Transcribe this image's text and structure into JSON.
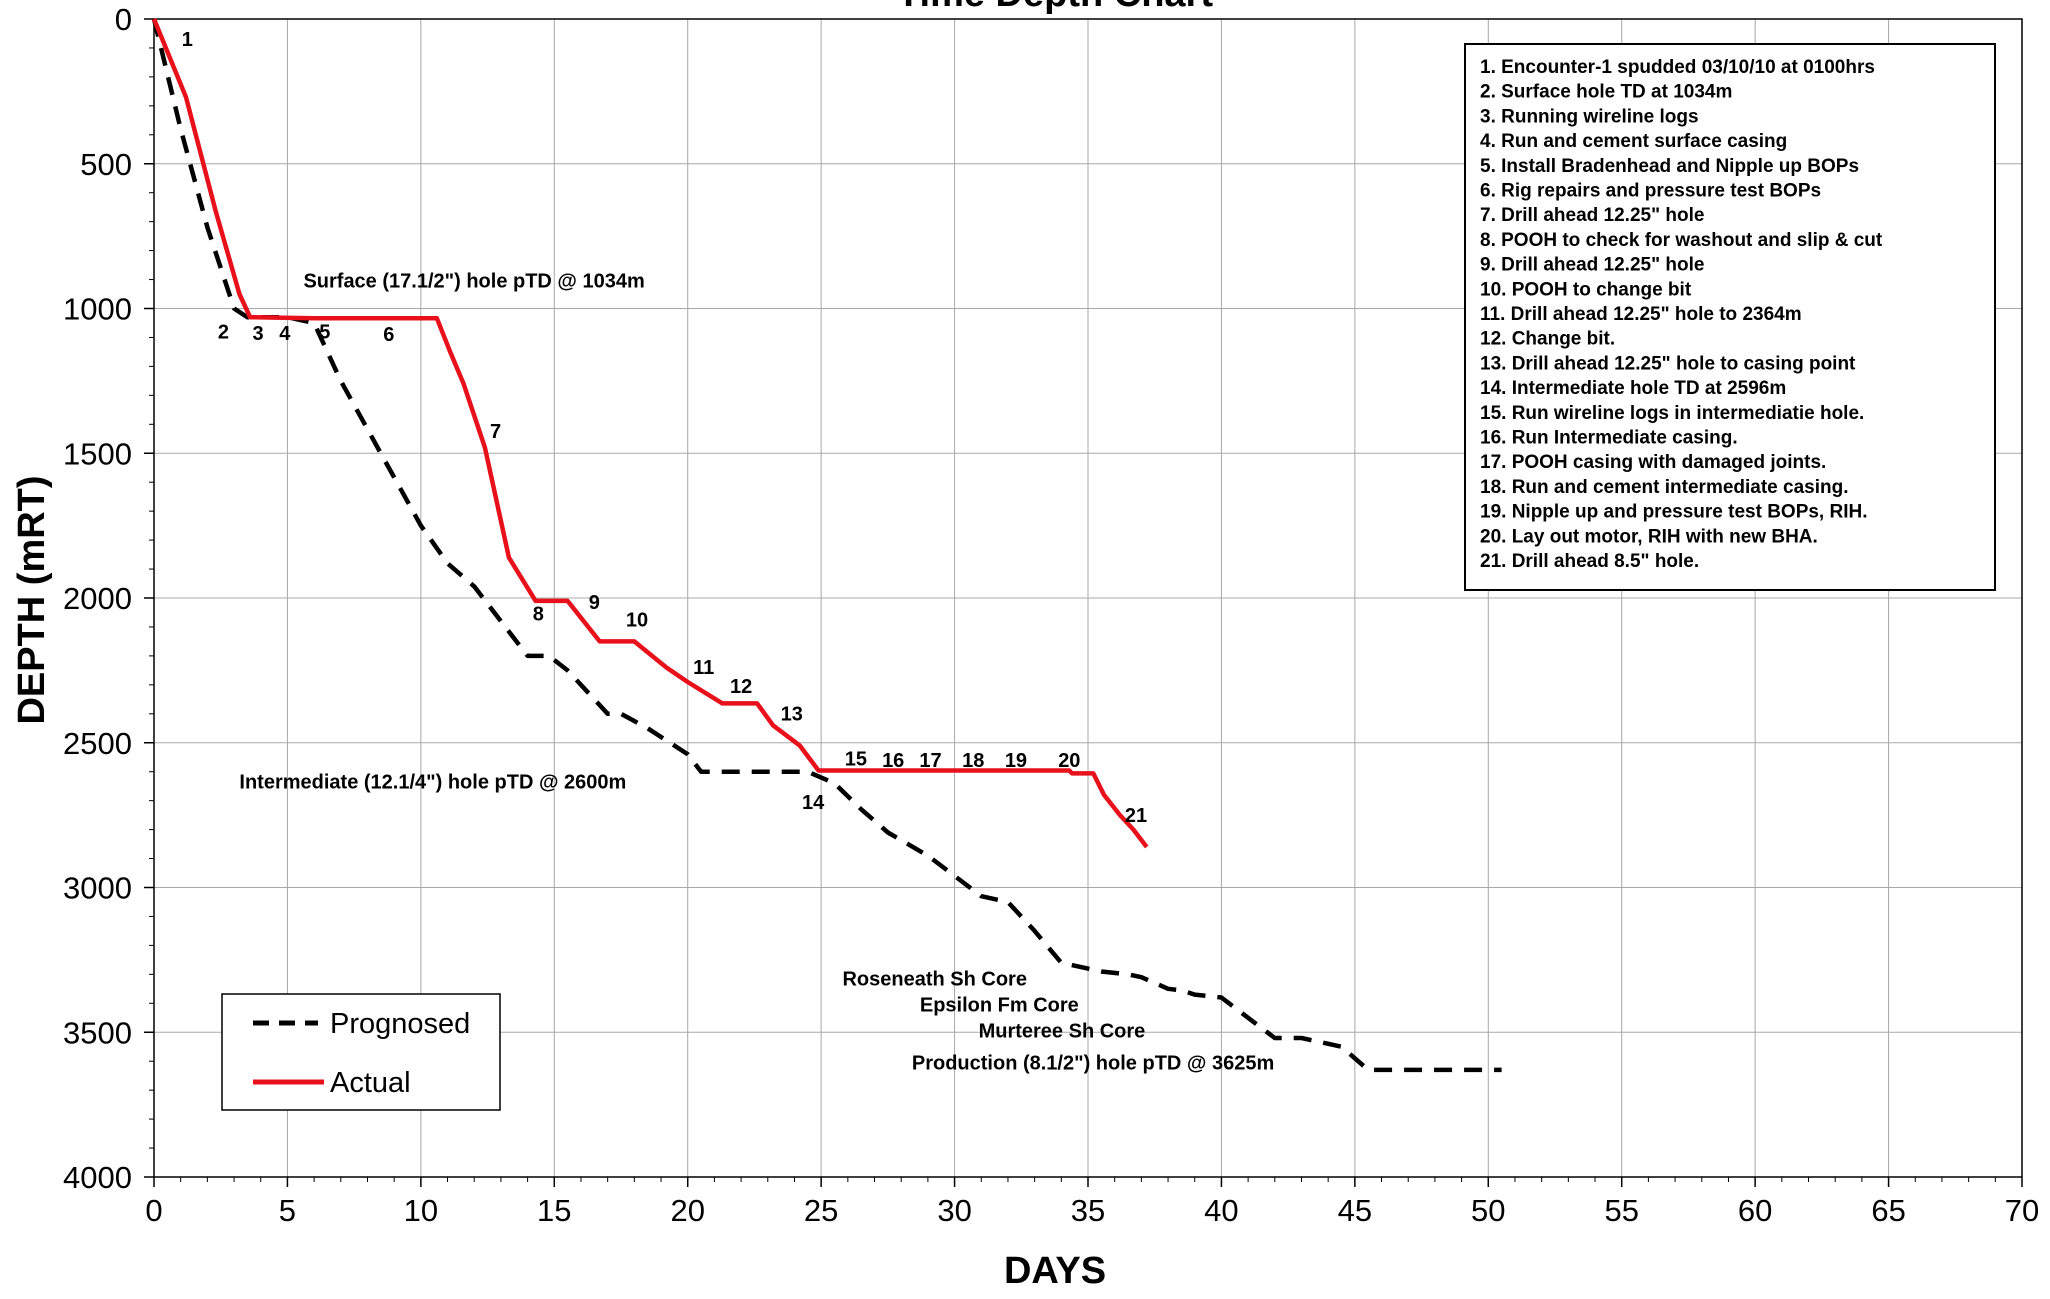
{
  "chart_data": {
    "type": "line",
    "title": "Time Depth Chart",
    "xlabel": "DAYS",
    "ylabel": "DEPTH (mRT)",
    "xlim": [
      0,
      70
    ],
    "ylim": [
      0,
      4000
    ],
    "y_inverted": true,
    "grid": true,
    "x_ticks": [
      0,
      5,
      10,
      15,
      20,
      25,
      30,
      35,
      40,
      45,
      50,
      55,
      60,
      65,
      70
    ],
    "y_ticks": [
      0,
      500,
      1000,
      1500,
      2000,
      2500,
      3000,
      3500,
      4000
    ],
    "legend_position": "bottom-left",
    "series": [
      {
        "name": "Prognosed",
        "style": "dashed",
        "color": "#000000",
        "points": [
          [
            0,
            0
          ],
          [
            1,
            380
          ],
          [
            2,
            720
          ],
          [
            3,
            1000
          ],
          [
            3.5,
            1030
          ],
          [
            5,
            1030
          ],
          [
            6,
            1050
          ],
          [
            7,
            1250
          ],
          [
            8.5,
            1500
          ],
          [
            10,
            1750
          ],
          [
            11,
            1880
          ],
          [
            12,
            1960
          ],
          [
            13,
            2080
          ],
          [
            14,
            2200
          ],
          [
            14.8,
            2200
          ],
          [
            15.5,
            2250
          ],
          [
            16.5,
            2350
          ],
          [
            17,
            2400
          ],
          [
            17.5,
            2400
          ],
          [
            18.5,
            2450
          ],
          [
            20,
            2540
          ],
          [
            20.5,
            2600
          ],
          [
            24.5,
            2600
          ],
          [
            25.5,
            2640
          ],
          [
            26.5,
            2730
          ],
          [
            27.5,
            2810
          ],
          [
            29,
            2890
          ],
          [
            30,
            2960
          ],
          [
            31,
            3030
          ],
          [
            32,
            3050
          ],
          [
            33,
            3150
          ],
          [
            34,
            3260
          ],
          [
            35,
            3280
          ],
          [
            35.5,
            3290
          ],
          [
            36.5,
            3300
          ],
          [
            37,
            3310
          ],
          [
            38,
            3350
          ],
          [
            38.5,
            3355
          ],
          [
            39,
            3370
          ],
          [
            40,
            3380
          ],
          [
            41,
            3450
          ],
          [
            42,
            3520
          ],
          [
            43,
            3520
          ],
          [
            44.5,
            3550
          ],
          [
            45.5,
            3630
          ],
          [
            50.5,
            3630
          ]
        ]
      },
      {
        "name": "Actual",
        "style": "solid",
        "color": "#e8101a",
        "points": [
          [
            0,
            0
          ],
          [
            1.2,
            270
          ],
          [
            2.3,
            660
          ],
          [
            3.2,
            950
          ],
          [
            3.6,
            1030
          ],
          [
            6,
            1034
          ],
          [
            10.6,
            1034
          ],
          [
            11.1,
            1150
          ],
          [
            11.6,
            1260
          ],
          [
            12.4,
            1480
          ],
          [
            13.3,
            1860
          ],
          [
            14.3,
            2010
          ],
          [
            15.5,
            2010
          ],
          [
            16.7,
            2150
          ],
          [
            18,
            2150
          ],
          [
            19.2,
            2240
          ],
          [
            20,
            2290
          ],
          [
            21.3,
            2364
          ],
          [
            22.6,
            2364
          ],
          [
            23.2,
            2440
          ],
          [
            24.2,
            2510
          ],
          [
            24.9,
            2596
          ],
          [
            34.3,
            2596
          ],
          [
            34.4,
            2606
          ],
          [
            35.2,
            2606
          ],
          [
            35.6,
            2680
          ],
          [
            36.2,
            2750
          ],
          [
            36.7,
            2800
          ],
          [
            37.2,
            2860
          ]
        ]
      }
    ],
    "point_labels": [
      {
        "text": "1",
        "x": 1.25,
        "y": 93
      },
      {
        "text": "2",
        "x": 2.6,
        "y": 1103
      },
      {
        "text": "3",
        "x": 3.9,
        "y": 1108
      },
      {
        "text": "4",
        "x": 4.9,
        "y": 1108
      },
      {
        "text": "5",
        "x": 6.4,
        "y": 1103
      },
      {
        "text": "6",
        "x": 8.8,
        "y": 1113
      },
      {
        "text": "7",
        "x": 12.8,
        "y": 1448
      },
      {
        "text": "8",
        "x": 14.4,
        "y": 2078
      },
      {
        "text": "9",
        "x": 16.5,
        "y": 2038
      },
      {
        "text": "10",
        "x": 18.1,
        "y": 2098
      },
      {
        "text": "11",
        "x": 20.6,
        "y": 2263
      },
      {
        "text": "12",
        "x": 22.0,
        "y": 2328
      },
      {
        "text": "13",
        "x": 23.9,
        "y": 2423
      },
      {
        "text": "14",
        "x": 24.7,
        "y": 2728
      },
      {
        "text": "15",
        "x": 26.3,
        "y": 2578
      },
      {
        "text": "16",
        "x": 27.7,
        "y": 2583
      },
      {
        "text": "17",
        "x": 29.1,
        "y": 2583
      },
      {
        "text": "18",
        "x": 30.7,
        "y": 2583
      },
      {
        "text": "19",
        "x": 32.3,
        "y": 2583
      },
      {
        "text": "20",
        "x": 34.3,
        "y": 2583
      },
      {
        "text": "21",
        "x": 36.8,
        "y": 2773
      }
    ],
    "annotations": [
      {
        "text": "Surface (17.1/2\") hole pTD @ 1034m",
        "x": 5.6,
        "y": 928
      },
      {
        "text": "Intermediate (12.1/4\") hole pTD @ 2600m",
        "x": 3.2,
        "y": 2658
      },
      {
        "text": "Roseneath Sh Core",
        "x": 25.8,
        "y": 3338
      },
      {
        "text": "Epsilon Fm Core",
        "x": 28.7,
        "y": 3428
      },
      {
        "text": "Murteree Sh Core",
        "x": 30.9,
        "y": 3518
      },
      {
        "text": "Production (8.1/2\") hole pTD @ 3625m",
        "x": 28.4,
        "y": 3628
      }
    ],
    "notes": [
      "1. Encounter-1 spudded 03/10/10 at 0100hrs",
      "2. Surface hole TD at 1034m",
      "3. Running wireline logs",
      "4. Run and cement surface casing",
      "5. Install Bradenhead and Nipple up BOPs",
      "6. Rig repairs and pressure test BOPs",
      "7. Drill ahead 12.25\" hole",
      "8. POOH to check for washout and slip & cut",
      "9. Drill ahead 12.25\" hole",
      "10. POOH to change bit",
      "11. Drill ahead 12.25\" hole to 2364m",
      "12. Change bit.",
      "13. Drill ahead 12.25\" hole to casing point",
      "14. Intermediate hole TD at 2596m",
      "15. Run wireline logs in intermediatie hole.",
      "16. Run Intermediate casing.",
      "17. POOH casing with damaged joints.",
      "18. Run and cement intermediate casing.",
      "19. Nipple up and pressure test BOPs, RIH.",
      "20. Lay out motor, RIH with new BHA.",
      "21. Drill ahead 8.5\" hole."
    ]
  }
}
